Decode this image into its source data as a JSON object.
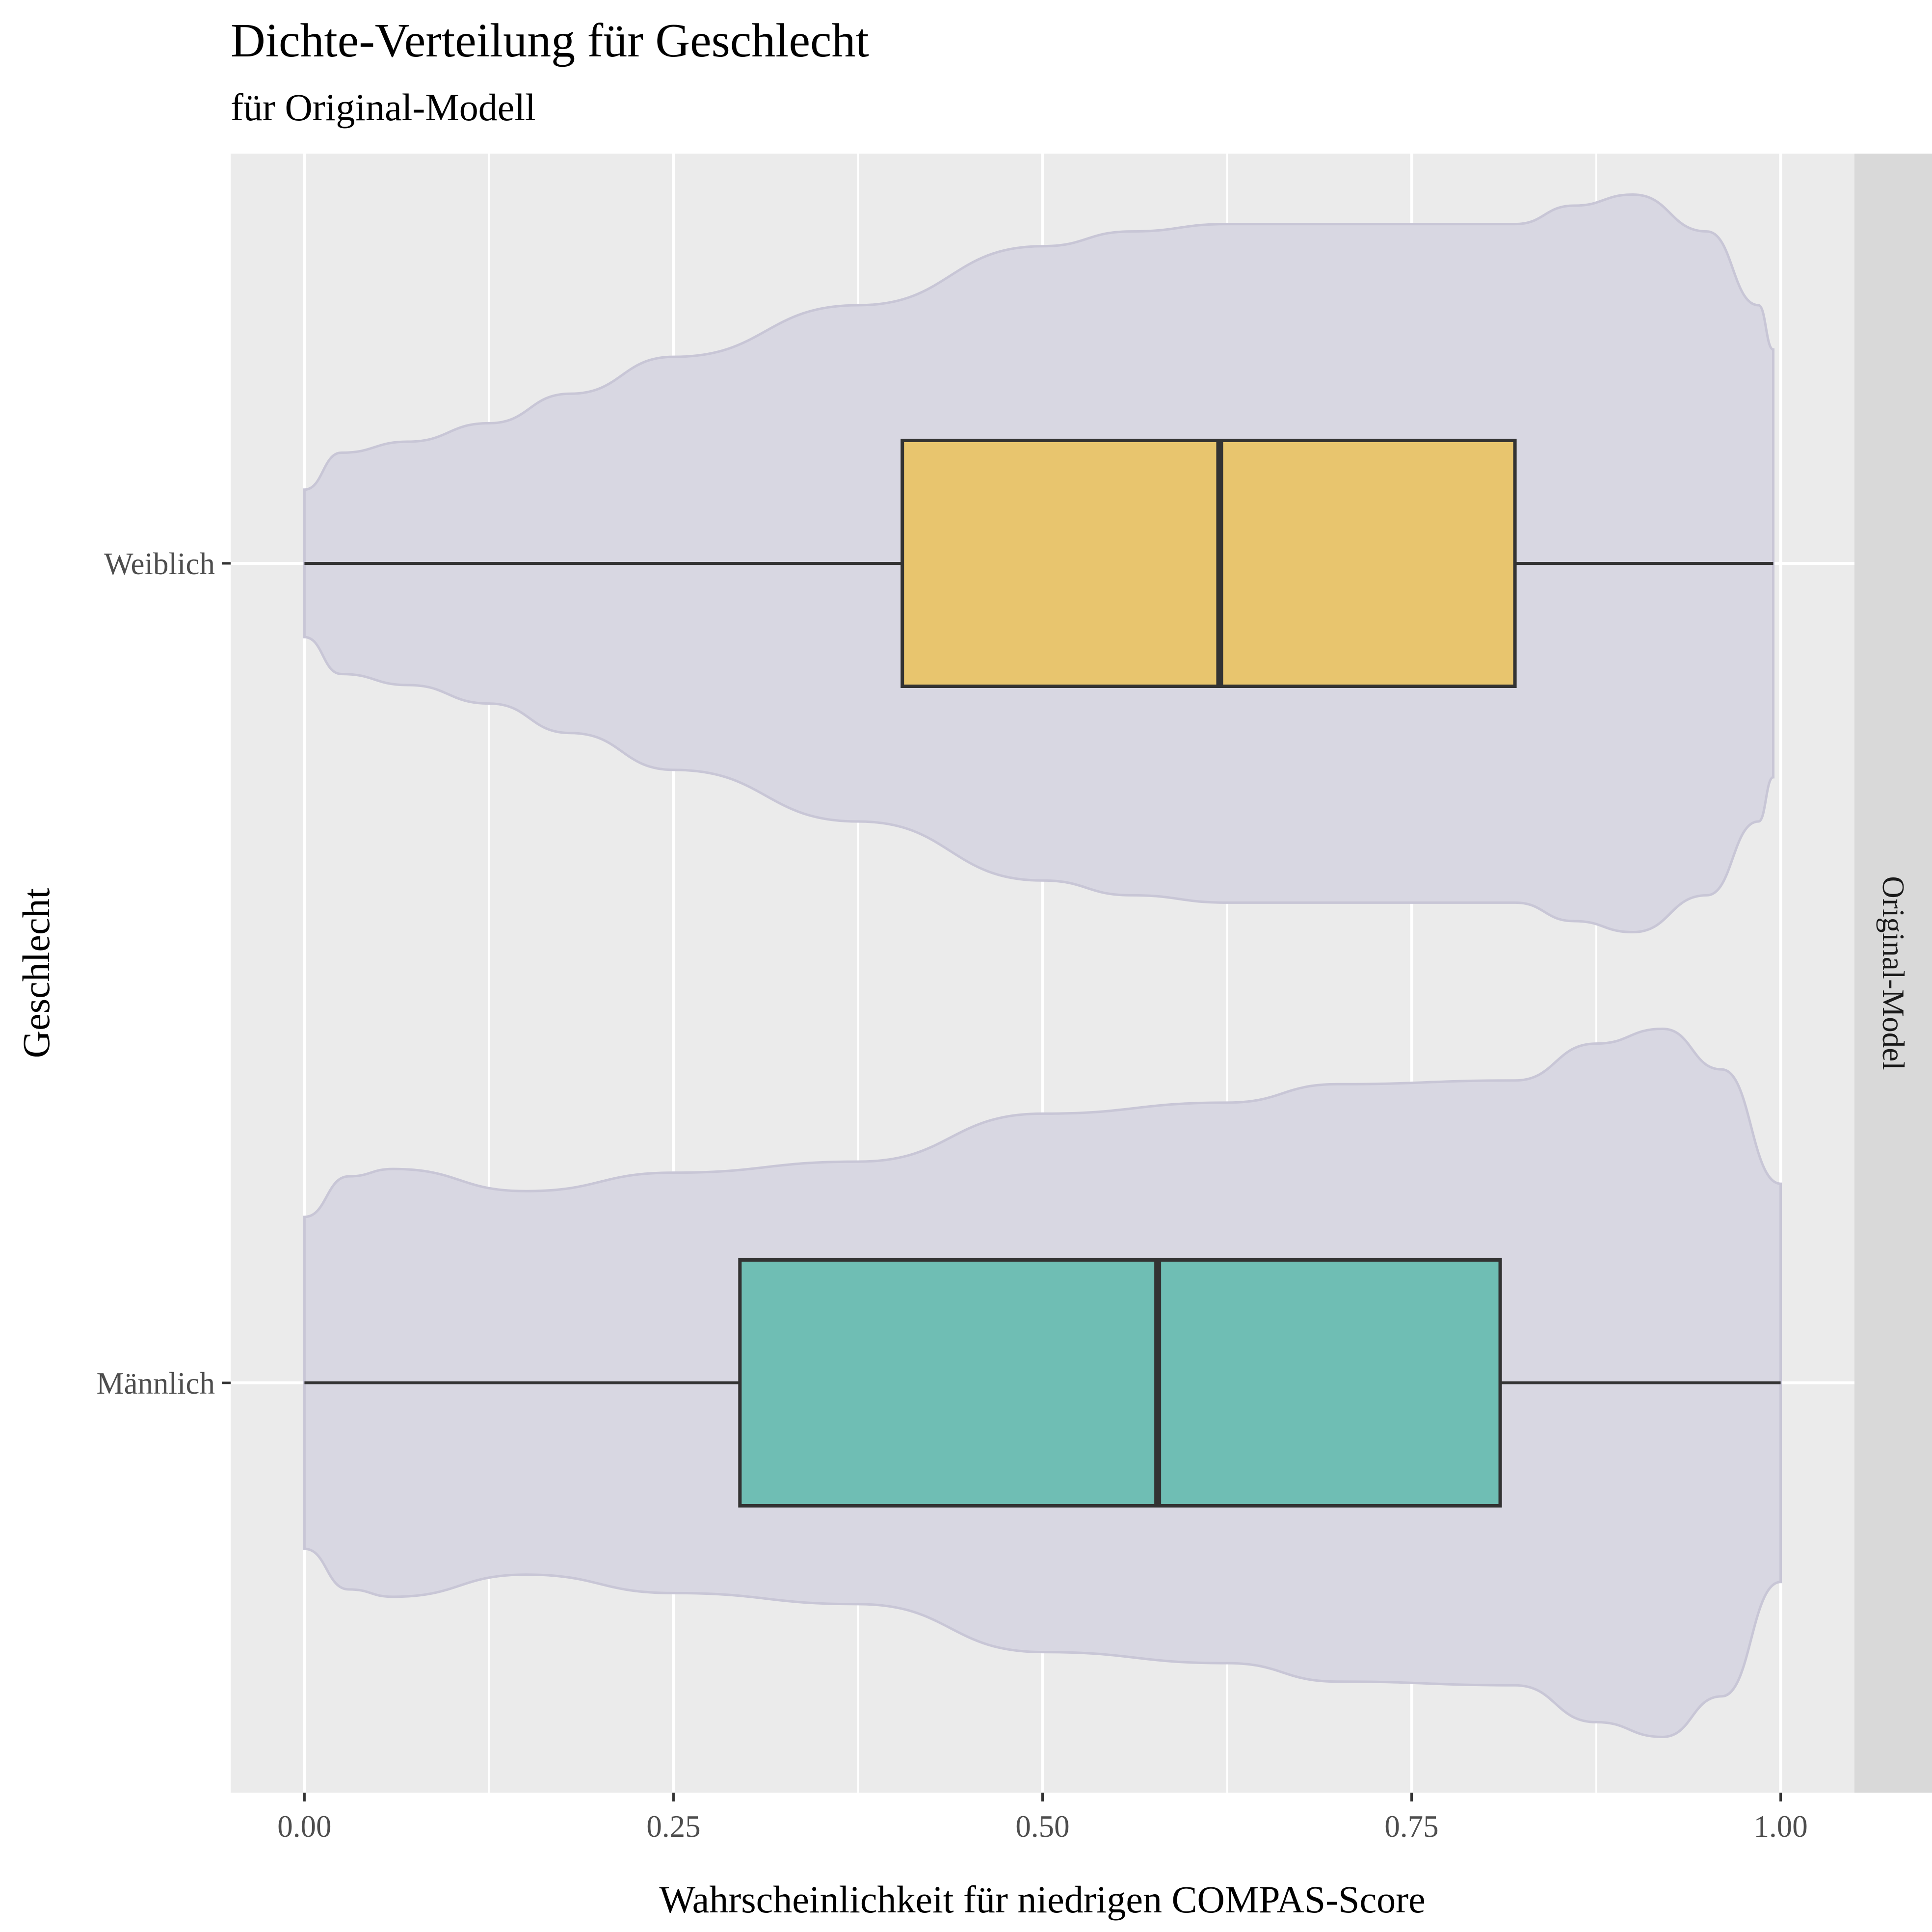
{
  "chart_data": {
    "type": "violin+boxplot",
    "orientation": "horizontal",
    "title": "Dichte-Verteilung für Geschlecht",
    "subtitle": "für Original-Modell",
    "xlabel": "Wahrscheinlichkeit für niedrigen COMPAS-Score",
    "ylabel": "Geschlecht",
    "facet_label": "Original-Model",
    "xlim": [
      -0.05,
      1.05
    ],
    "x_ticks": [
      "0.00",
      "0.25",
      "0.50",
      "0.75",
      "1.00"
    ],
    "x_tick_values": [
      0,
      0.25,
      0.5,
      0.75,
      1.0
    ],
    "categories": [
      "Weiblich",
      "Männlich"
    ],
    "grid": true,
    "legend": "none",
    "colors": {
      "panel_background": "#ebebeb",
      "grid": "#ffffff",
      "strip_background": "#d9d9d9",
      "violin_fill": "#d8d7e2",
      "violin_stroke": "#c8c6d6",
      "box_outline": "#333333"
    },
    "series": [
      {
        "category": "Weiblich",
        "box_color": "#e8c56e",
        "whisker_low": 0.0,
        "q1": 0.405,
        "median": 0.62,
        "q3": 0.82,
        "whisker_high": 0.995,
        "density": [
          [
            0.0,
            0.2
          ],
          [
            0.025,
            0.3
          ],
          [
            0.07,
            0.33
          ],
          [
            0.125,
            0.38
          ],
          [
            0.18,
            0.46
          ],
          [
            0.25,
            0.56
          ],
          [
            0.375,
            0.7
          ],
          [
            0.5,
            0.86
          ],
          [
            0.56,
            0.9
          ],
          [
            0.625,
            0.92
          ],
          [
            0.75,
            0.92
          ],
          [
            0.82,
            0.92
          ],
          [
            0.86,
            0.97
          ],
          [
            0.9,
            1.0
          ],
          [
            0.95,
            0.9
          ],
          [
            0.985,
            0.7
          ],
          [
            0.995,
            0.58
          ]
        ]
      },
      {
        "category": "Männlich",
        "box_color": "#6fbeb4",
        "whisker_low": 0.0,
        "q1": 0.295,
        "median": 0.578,
        "q3": 0.81,
        "whisker_high": 1.0,
        "density": [
          [
            0.0,
            0.45
          ],
          [
            0.03,
            0.56
          ],
          [
            0.06,
            0.58
          ],
          [
            0.15,
            0.52
          ],
          [
            0.25,
            0.57
          ],
          [
            0.375,
            0.6
          ],
          [
            0.5,
            0.73
          ],
          [
            0.625,
            0.76
          ],
          [
            0.7,
            0.81
          ],
          [
            0.82,
            0.82
          ],
          [
            0.875,
            0.92
          ],
          [
            0.92,
            0.96
          ],
          [
            0.96,
            0.85
          ],
          [
            1.0,
            0.54
          ]
        ]
      }
    ]
  }
}
